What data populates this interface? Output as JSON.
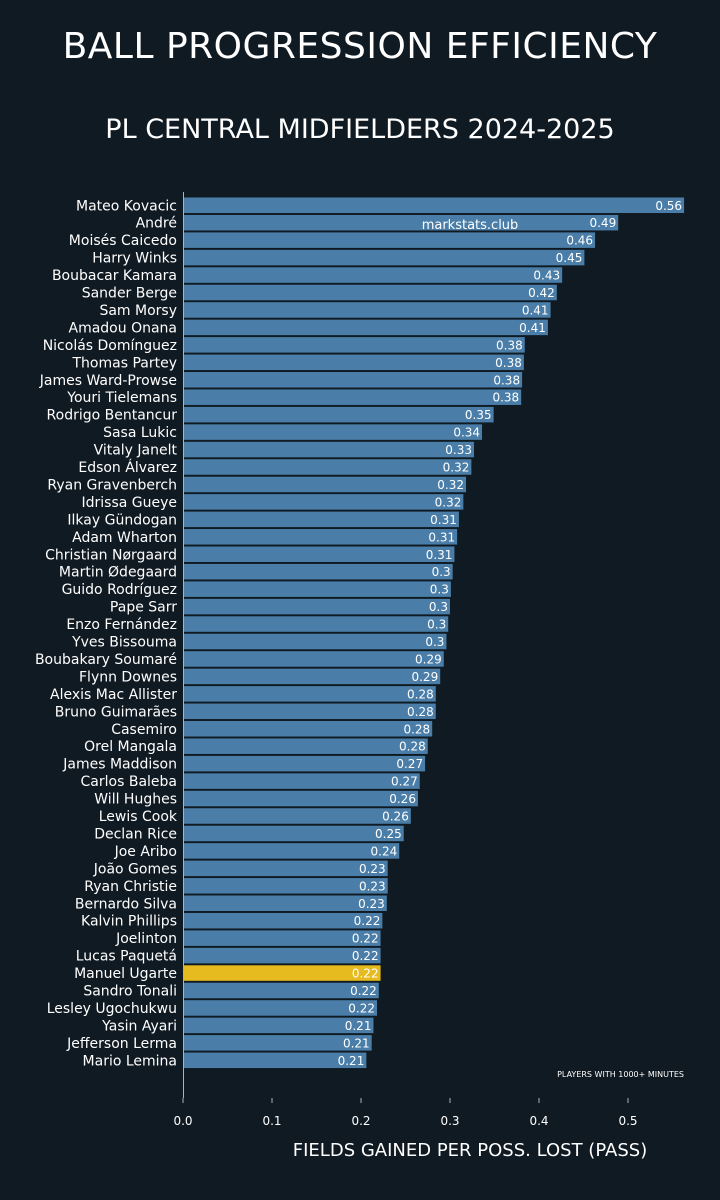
{
  "chart_data": {
    "type": "bar",
    "orientation": "horizontal",
    "title": "BALL PROGRESSION EFFICIENCY",
    "subtitle": "PL CENTRAL MIDFIELDERS 2024-2025",
    "xlabel": "FIELDS GAINED PER POSS. LOST (PASS)",
    "xlim": [
      0,
      0.6
    ],
    "xticks": [
      "0.0",
      "0.1",
      "0.2",
      "0.3",
      "0.4",
      "0.5"
    ],
    "annotation": "PLAYERS WITH 1000+ MINUTES",
    "watermark": "markstats.club",
    "highlight": "Manuel Ugarte",
    "colors": {
      "bar": "#4a7ea8",
      "highlight": "#e6bb1f",
      "background": "#101a22",
      "text": "#ffffff"
    },
    "categories": [
      "Mateo Kovacic",
      "André",
      "Moisés Caicedo",
      "Harry Winks",
      "Boubacar Kamara",
      "Sander Berge",
      "Sam Morsy",
      "Amadou Onana",
      "Nicolás Domínguez",
      "Thomas Partey",
      "James Ward-Prowse",
      "Youri Tielemans",
      "Rodrigo Bentancur",
      "Sasa Lukic",
      "Vitaly Janelt",
      "Edson Álvarez",
      "Ryan Gravenberch",
      "Idrissa Gueye",
      "Ilkay Gündogan",
      "Adam Wharton",
      "Christian Nørgaard",
      "Martin Ødegaard",
      "Guido Rodríguez",
      "Pape Sarr",
      "Enzo Fernández",
      "Yves Bissouma",
      "Boubakary Soumaré",
      "Flynn Downes",
      "Alexis Mac Allister",
      "Bruno Guimarães",
      "Casemiro",
      "Orel Mangala",
      "James Maddison",
      "Carlos Baleba",
      "Will Hughes",
      "Lewis Cook",
      "Declan Rice",
      "Joe Aribo",
      "João Gomes",
      "Ryan Christie",
      "Bernardo Silva",
      "Kalvin Phillips",
      "Joelinton",
      "Lucas Paquetá",
      "Manuel Ugarte",
      "Sandro Tonali",
      "Lesley Ugochukwu",
      "Yasin Ayari",
      "Jefferson Lerma",
      "Mario Lemina"
    ],
    "values": [
      0.563,
      0.489,
      0.463,
      0.451,
      0.426,
      0.42,
      0.413,
      0.41,
      0.384,
      0.383,
      0.381,
      0.38,
      0.349,
      0.336,
      0.327,
      0.324,
      0.318,
      0.315,
      0.31,
      0.308,
      0.305,
      0.303,
      0.301,
      0.3,
      0.298,
      0.296,
      0.293,
      0.289,
      0.284,
      0.284,
      0.28,
      0.275,
      0.272,
      0.266,
      0.264,
      0.256,
      0.248,
      0.243,
      0.23,
      0.23,
      0.229,
      0.224,
      0.222,
      0.222,
      0.222,
      0.22,
      0.218,
      0.214,
      0.212,
      0.206
    ],
    "labels": [
      "0.56",
      "0.49",
      "0.46",
      "0.45",
      "0.43",
      "0.42",
      "0.41",
      "0.41",
      "0.38",
      "0.38",
      "0.38",
      "0.38",
      "0.35",
      "0.34",
      "0.33",
      "0.32",
      "0.32",
      "0.32",
      "0.31",
      "0.31",
      "0.31",
      "0.3",
      "0.3",
      "0.3",
      "0.3",
      "0.3",
      "0.29",
      "0.29",
      "0.28",
      "0.28",
      "0.28",
      "0.28",
      "0.27",
      "0.27",
      "0.26",
      "0.26",
      "0.25",
      "0.24",
      "0.23",
      "0.23",
      "0.23",
      "0.22",
      "0.22",
      "0.22",
      "0.22",
      "0.22",
      "0.22",
      "0.21",
      "0.21",
      "0.21"
    ]
  }
}
